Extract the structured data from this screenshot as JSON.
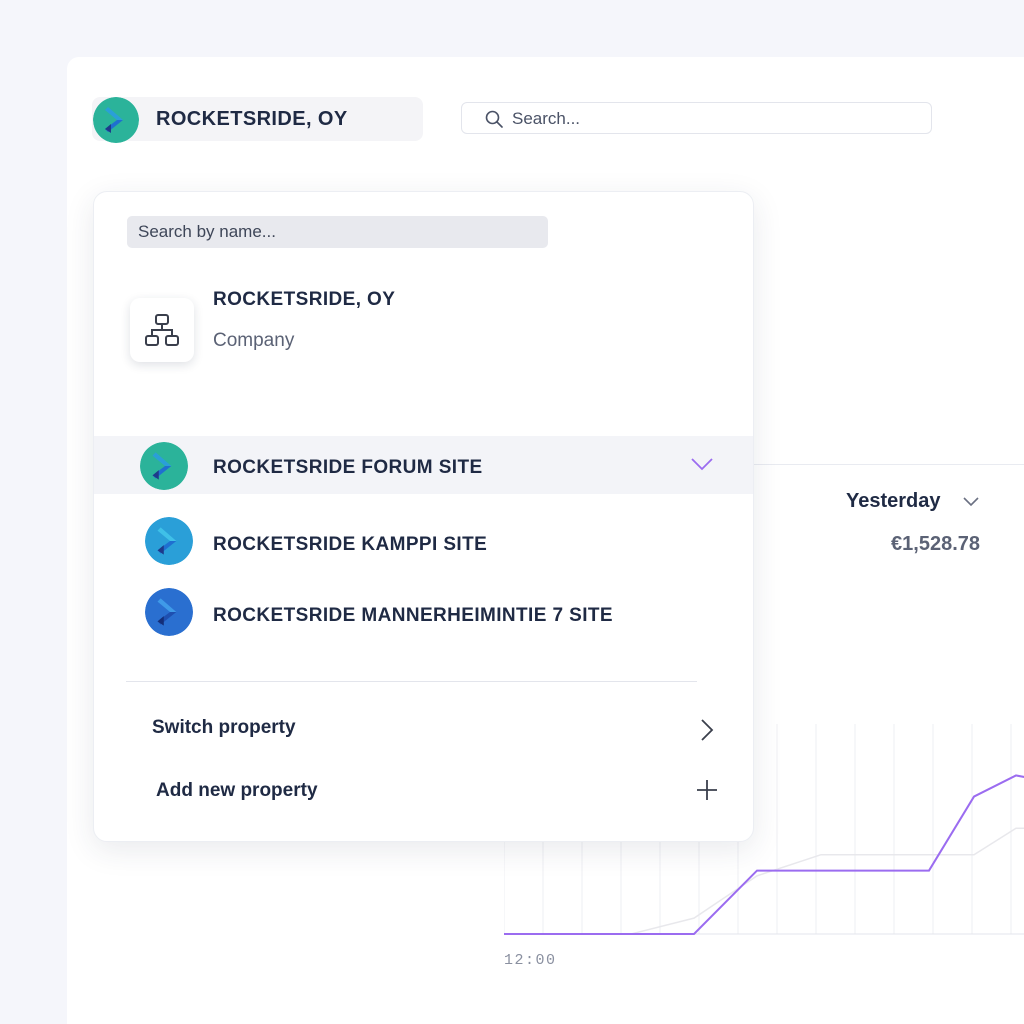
{
  "header": {
    "brand_name": "ROCKETSRIDE, OY",
    "search_placeholder": "Search..."
  },
  "dashboard": {
    "period": "Yesterday",
    "metric_value": "€1,528.78",
    "chart_data": {
      "type": "line",
      "x_ticks": [
        "12:00"
      ],
      "series": [
        {
          "color": "#9b6cf0",
          "values": [
            0,
            0,
            0,
            0,
            1.2,
            1.2,
            1.2,
            1.2,
            2.6,
            3.0,
            2.9
          ]
        },
        {
          "color": "#e8e8ec",
          "values": [
            0,
            0,
            0,
            0.3,
            1.1,
            1.5,
            1.5,
            1.5,
            1.5,
            2.0,
            2.0
          ]
        }
      ],
      "grid": true,
      "colors": {
        "primary": "#9b6cf0",
        "secondary": "#e8e8ec"
      }
    }
  },
  "dropdown": {
    "search_placeholder": "Search by name...",
    "company": {
      "name": "ROCKETSRIDE, OY",
      "type": "Company",
      "icon": "org-chart-icon"
    },
    "sites": [
      {
        "label": "ROCKETSRIDE FORUM SITE",
        "active": true,
        "logo_color": "#2bb39a"
      },
      {
        "label": "ROCKETSRIDE KAMPPI SITE",
        "active": false,
        "logo_color": "#2a9fd8"
      },
      {
        "label": "ROCKETSRIDE MANNERHEIMINTIE 7 SITE",
        "active": false,
        "logo_color": "#2a6fd0"
      }
    ],
    "actions": {
      "switch_label": "Switch property",
      "add_label": "Add new property"
    },
    "accent": "#9b6cf0"
  }
}
